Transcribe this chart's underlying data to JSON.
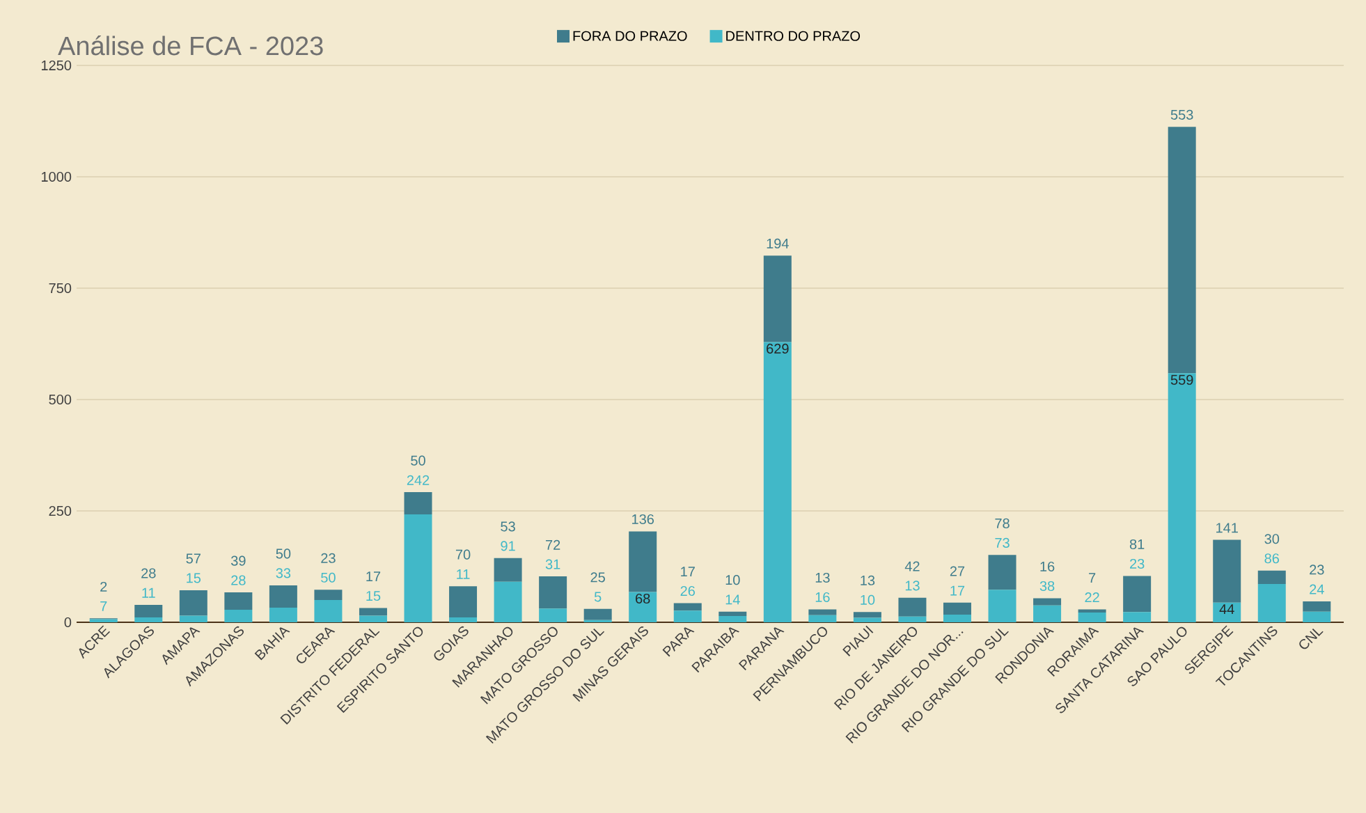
{
  "chart_data": {
    "type": "bar",
    "title": "Análise de FCA - 2023",
    "stacked": true,
    "categories": [
      "ACRE",
      "ALAGOAS",
      "AMAPA",
      "AMAZONAS",
      "BAHIA",
      "CEARA",
      "DISTRITO FEDERAL",
      "ESPIRITO SANTO",
      "GOIAS",
      "MARANHAO",
      "MATO GROSSO",
      "MATO GROSSO DO SUL",
      "MINAS GERAIS",
      "PARA",
      "PARAIBA",
      "PARANA",
      "PERNAMBUCO",
      "PIAUI",
      "RIO DE JANEIRO",
      "RIO GRANDE DO NOR...",
      "RIO GRANDE DO SUL",
      "RONDONIA",
      "RORAIMA",
      "SANTA CATARINA",
      "SAO PAULO",
      "SERGIPE",
      "TOCANTINS",
      "CNL"
    ],
    "series": [
      {
        "name": "DENTRO DO PRAZO",
        "color": "#41b8c8",
        "values": [
          7,
          11,
          15,
          28,
          33,
          50,
          15,
          242,
          11,
          91,
          31,
          5,
          68,
          26,
          14,
          629,
          16,
          10,
          13,
          17,
          73,
          38,
          22,
          23,
          559,
          44,
          86,
          24
        ]
      },
      {
        "name": "FORA DO PRAZO",
        "color": "#3f7c8c",
        "values": [
          2,
          28,
          57,
          39,
          50,
          23,
          17,
          50,
          70,
          53,
          72,
          25,
          136,
          17,
          10,
          194,
          13,
          13,
          42,
          27,
          78,
          16,
          7,
          81,
          553,
          141,
          30,
          23
        ]
      }
    ],
    "ylim": [
      0,
      1250
    ],
    "yticks": [
      0,
      250,
      500,
      750,
      1000,
      1250
    ],
    "grid": "y",
    "legend": "top",
    "data_labels": true
  }
}
